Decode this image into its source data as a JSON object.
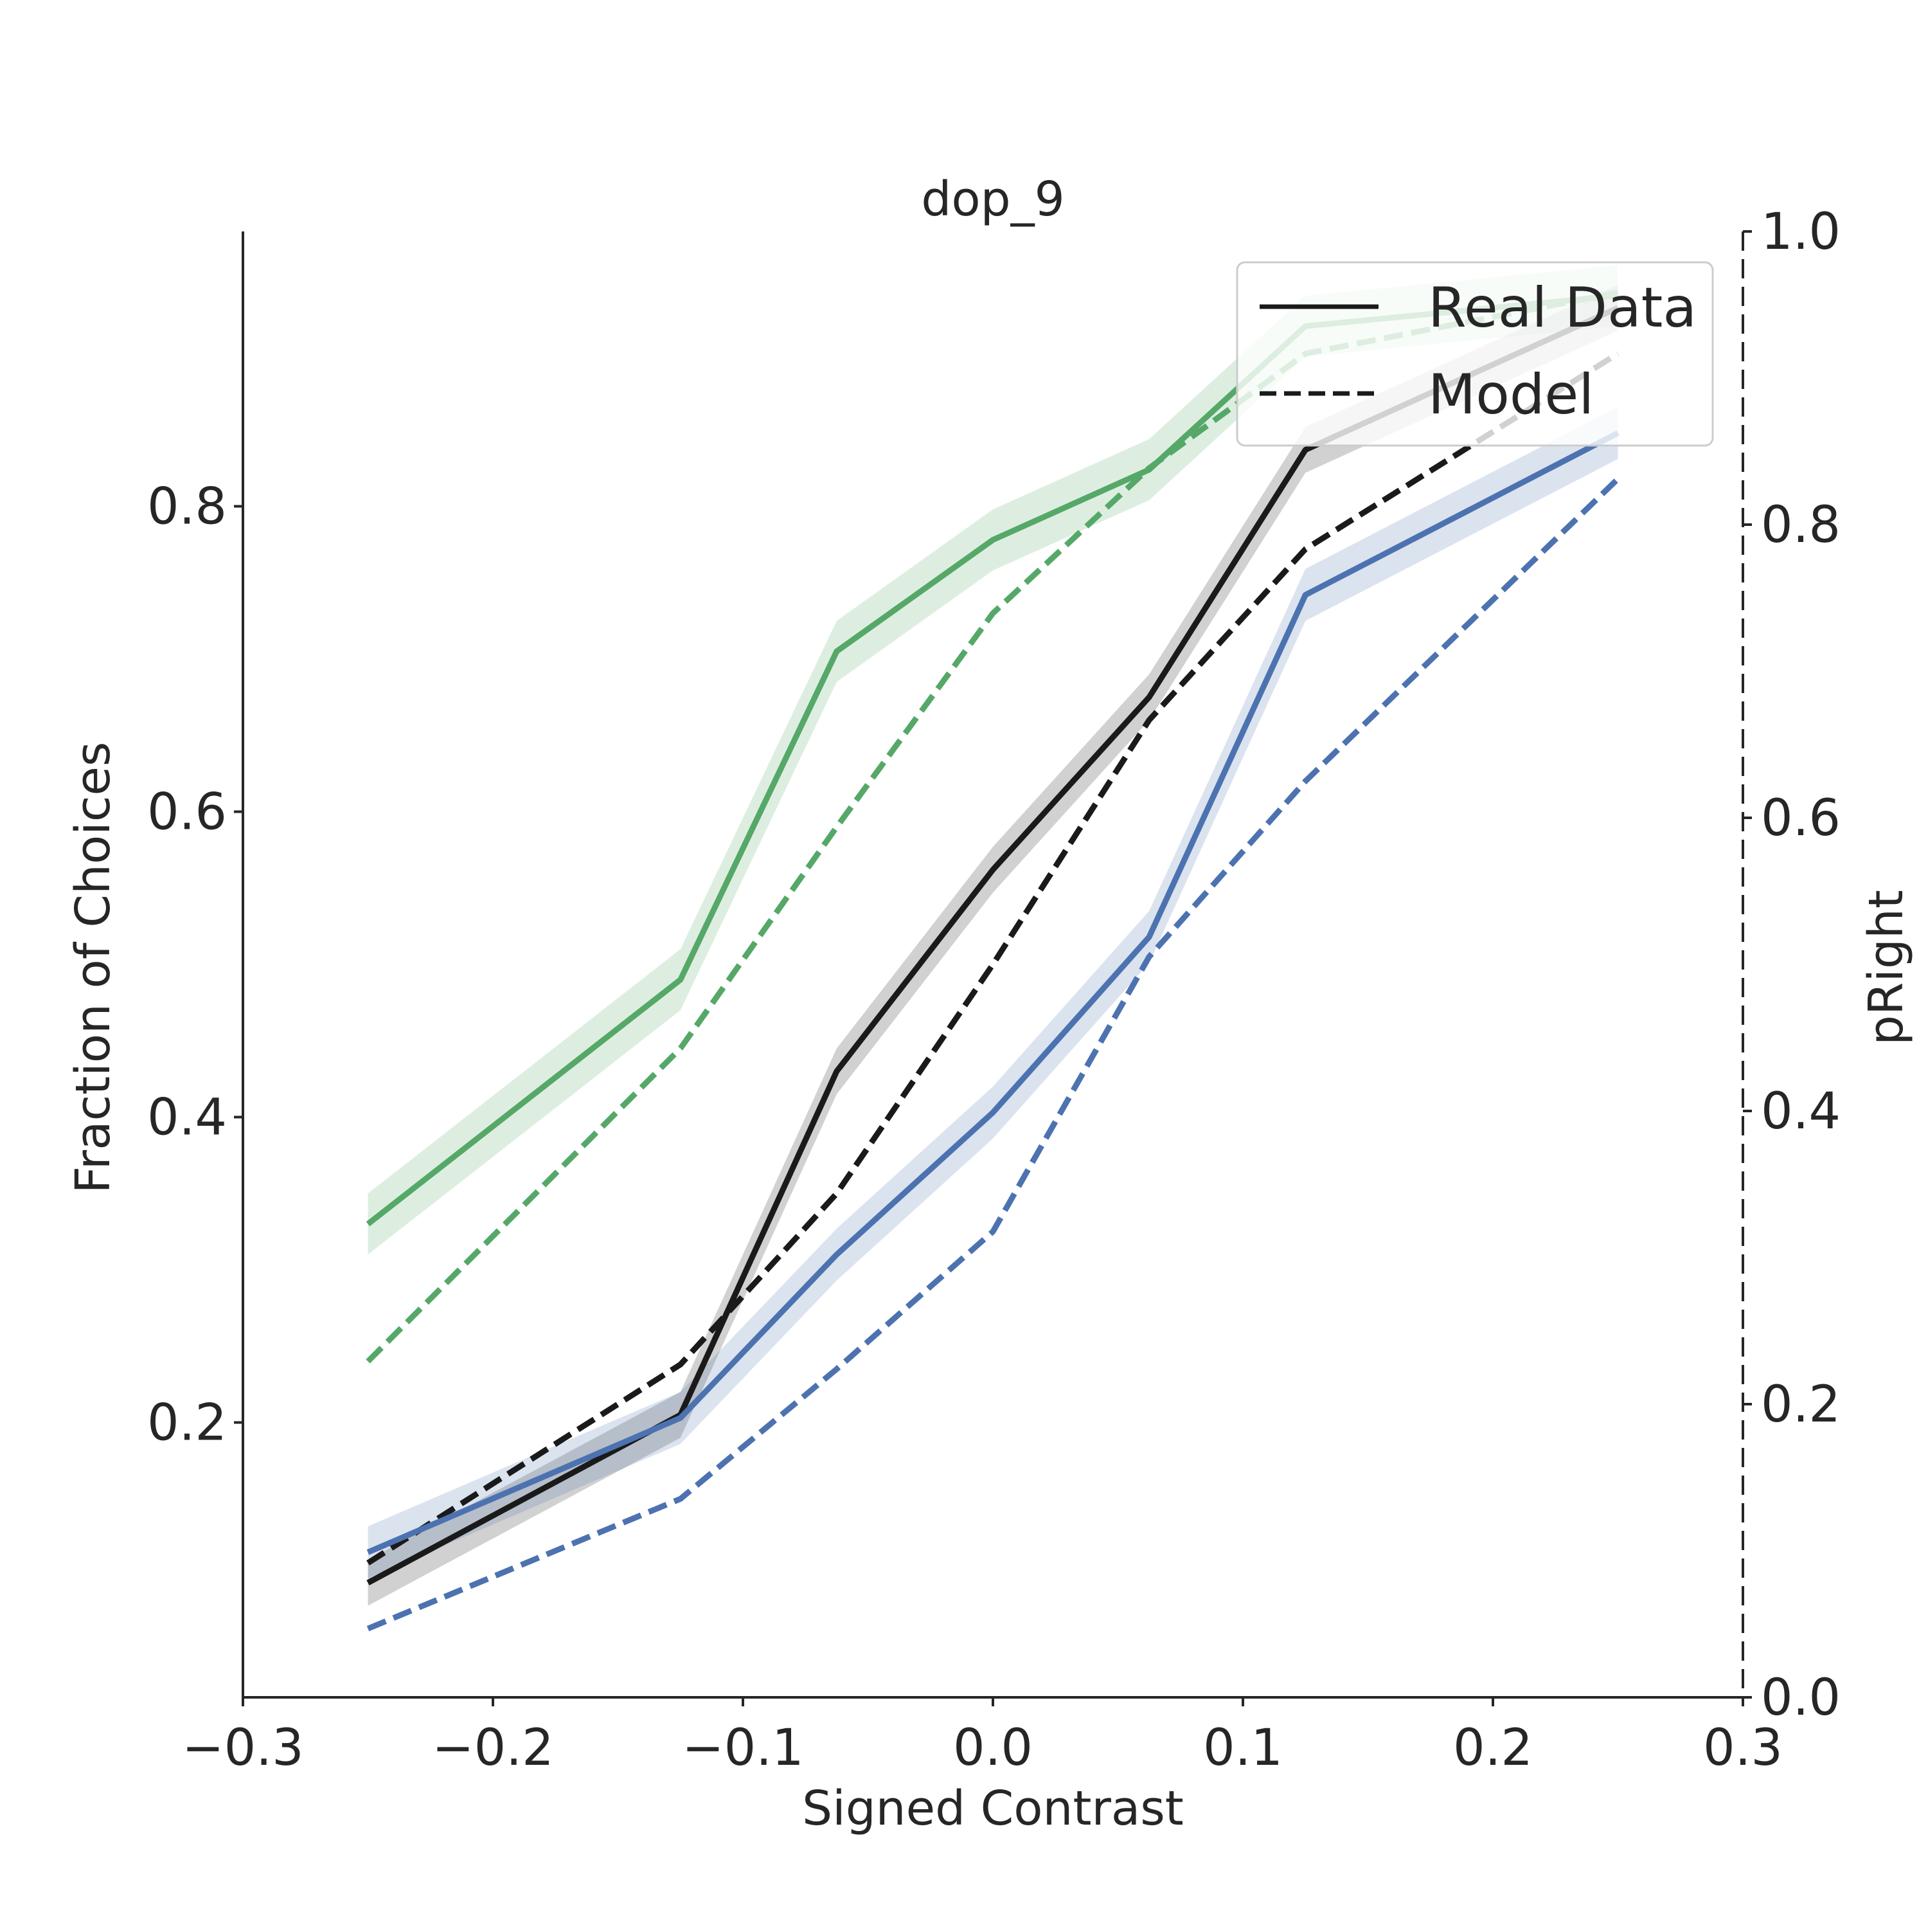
{
  "chart_data": {
    "type": "line",
    "title": "dop_9",
    "xlabel": "Signed Contrast",
    "ylabel": "Fraction of Choices",
    "y2label": "pRight",
    "xlim": [
      -0.3,
      0.3
    ],
    "ylim": [
      0.02,
      0.98
    ],
    "y2lim": [
      0.0,
      1.0
    ],
    "grid": false,
    "xticks": [
      -0.3,
      -0.2,
      -0.1,
      0.0,
      0.1,
      0.2,
      0.3
    ],
    "xtick_labels": [
      "−0.3",
      "−0.2",
      "−0.1",
      "0.0",
      "0.1",
      "0.2",
      "0.3"
    ],
    "yticks": [
      0.2,
      0.4,
      0.6,
      0.8
    ],
    "ytick_labels": [
      "0.2",
      "0.4",
      "0.6",
      "0.8"
    ],
    "y2ticks": [
      0.0,
      0.2,
      0.4,
      0.6,
      0.8,
      1.0
    ],
    "y2tick_labels": [
      "0.0",
      "0.2",
      "0.4",
      "0.6",
      "0.8",
      "1.0"
    ],
    "x": [
      -0.25,
      -0.125,
      -0.0625,
      0.0,
      0.0625,
      0.125,
      0.25
    ],
    "legend": {
      "placement": "top-right",
      "entries": [
        {
          "label": "Real Data",
          "linestyle": "solid"
        },
        {
          "label": "Model",
          "linestyle": "dashed"
        }
      ]
    },
    "series": [
      {
        "color": "#55a868",
        "linestyle": "solid",
        "values": [
          0.33,
          0.49,
          0.705,
          0.778,
          0.824,
          0.918,
          0.938
        ],
        "band": 0.02
      },
      {
        "color": "#55a868",
        "linestyle": "dashed",
        "values": [
          0.24,
          0.445,
          0.59,
          0.73,
          0.825,
          0.9,
          0.94
        ]
      },
      {
        "color": "#1a1a1a",
        "linestyle": "solid",
        "values": [
          0.095,
          0.205,
          0.43,
          0.562,
          0.675,
          0.837,
          0.93
        ],
        "band": 0.015
      },
      {
        "color": "#1a1a1a",
        "linestyle": "dashed",
        "values": [
          0.108,
          0.238,
          0.35,
          0.5,
          0.66,
          0.772,
          0.9
        ]
      },
      {
        "color": "#4c72b0",
        "linestyle": "solid",
        "values": [
          0.115,
          0.203,
          0.31,
          0.403,
          0.518,
          0.742,
          0.848
        ],
        "band": 0.017
      },
      {
        "color": "#4c72b0",
        "linestyle": "dashed",
        "values": [
          0.065,
          0.15,
          0.235,
          0.325,
          0.505,
          0.62,
          0.818
        ]
      }
    ]
  }
}
